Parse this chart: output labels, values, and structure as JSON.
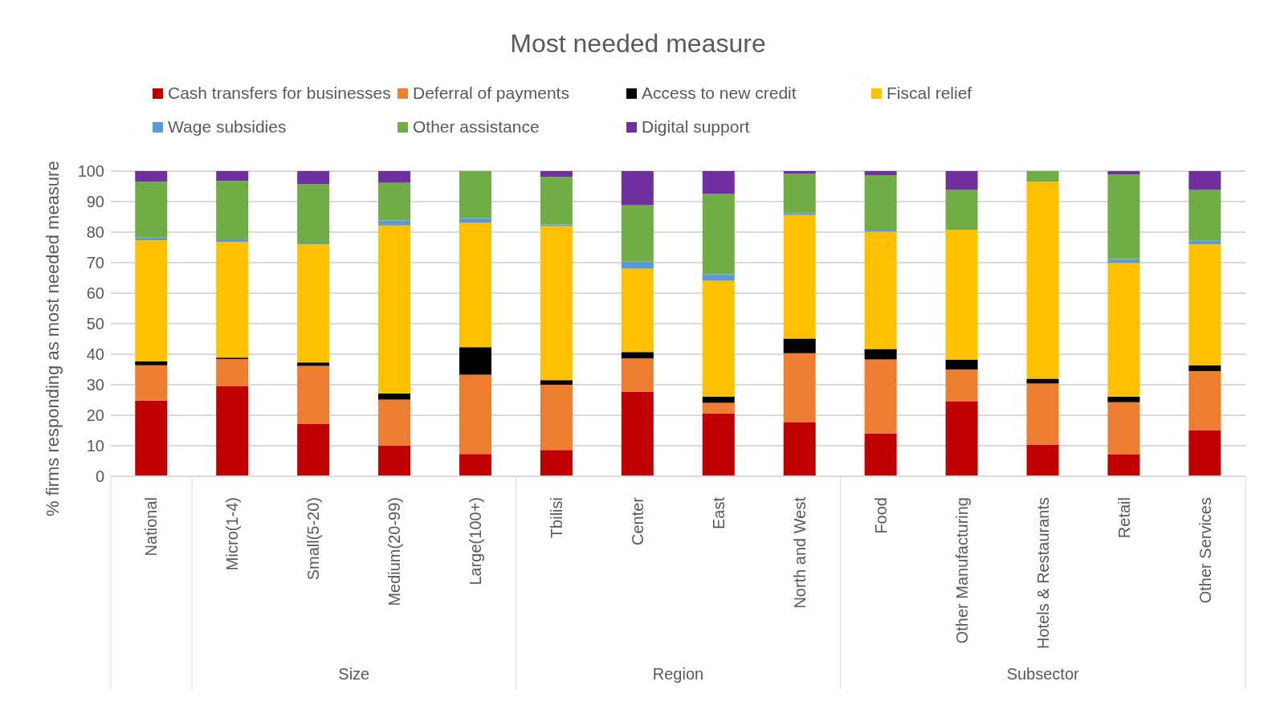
{
  "chart_data": {
    "type": "bar",
    "stacked": true,
    "title": "Most needed measure",
    "ylabel": "% firms responding as most needed measure",
    "categories": [
      "National",
      "Micro(1-4)",
      "Small(5-20)",
      "Medium(20-99)",
      "Large(100+)",
      "Tbilisi",
      "Center",
      "East",
      "North and West",
      "Food",
      "Other Manufacturing",
      "Hotels & Restaurants",
      "Retail",
      "Other Services"
    ],
    "series": [
      {
        "name": "Cash transfers for businesses",
        "color": "#c00000",
        "values": [
          24.8,
          29.5,
          17.1,
          10.0,
          7.3,
          8.6,
          27.6,
          20.6,
          17.6,
          14.1,
          24.6,
          10.4,
          7.1,
          15.0
        ]
      },
      {
        "name": "Deferral of payments",
        "color": "#ed7d31",
        "values": [
          11.6,
          8.9,
          19.1,
          15.1,
          26.0,
          21.4,
          11.0,
          3.5,
          22.7,
          24.2,
          10.4,
          20.0,
          17.2,
          19.5
        ]
      },
      {
        "name": "Access to new credit",
        "color": "#000000",
        "values": [
          1.2,
          0.5,
          1.1,
          2.1,
          9.0,
          1.5,
          2.1,
          2.0,
          4.8,
          3.4,
          3.2,
          1.6,
          1.8,
          1.8
        ]
      },
      {
        "name": "Fiscal relief",
        "color": "#ffc000",
        "values": [
          39.8,
          37.9,
          38.7,
          55.0,
          40.7,
          50.5,
          27.3,
          38.0,
          40.5,
          38.4,
          42.6,
          64.5,
          43.8,
          39.7
        ]
      },
      {
        "name": "Wage subsidies",
        "color": "#5b9bd5",
        "values": [
          0.8,
          0.8,
          0.3,
          1.6,
          1.6,
          0.5,
          2.3,
          2.1,
          0.6,
          0.7,
          0,
          0,
          1.3,
          1.2
        ]
      },
      {
        "name": "Other assistance",
        "color": "#70ad47",
        "values": [
          18.3,
          19.2,
          19.4,
          12.4,
          15.4,
          15.6,
          18.5,
          26.3,
          12.9,
          17.9,
          13.0,
          3.5,
          27.7,
          16.6
        ]
      },
      {
        "name": "Digital support",
        "color": "#7030a0",
        "values": [
          3.5,
          3.2,
          4.3,
          3.8,
          0,
          1.9,
          11.2,
          7.5,
          0.9,
          1.3,
          6.2,
          0,
          1.1,
          6.2
        ]
      }
    ],
    "ylim": [
      0,
      100
    ],
    "yticks": [
      0,
      10,
      20,
      30,
      40,
      50,
      60,
      70,
      80,
      90,
      100
    ],
    "grid": "y",
    "legend": "top",
    "annotations": [
      "Size",
      "Region",
      "Subsector"
    ]
  }
}
